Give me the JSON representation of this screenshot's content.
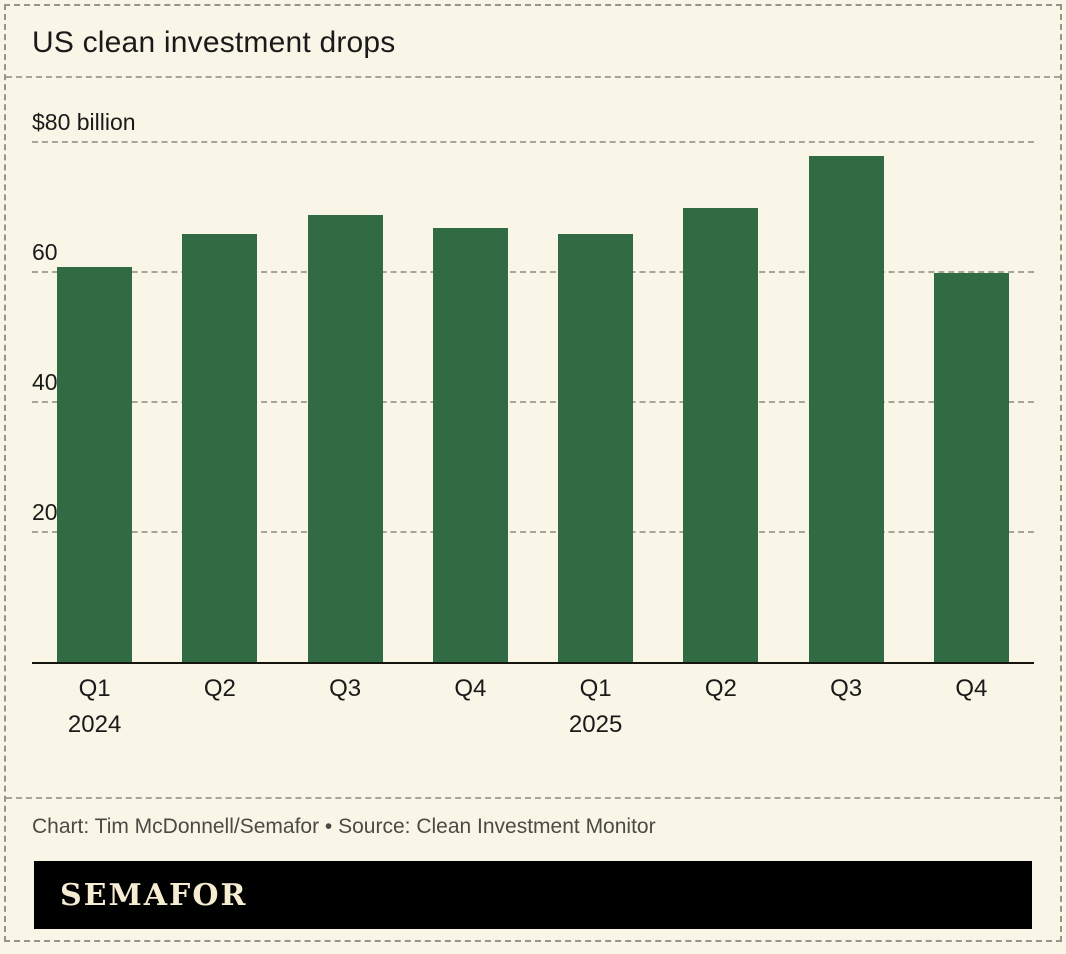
{
  "chart_data": {
    "type": "bar",
    "title": "US clean investment drops",
    "categories": [
      "Q1",
      "Q2",
      "Q3",
      "Q4",
      "Q1",
      "Q2",
      "Q3",
      "Q4"
    ],
    "year_labels": [
      {
        "index": 0,
        "label": "2024"
      },
      {
        "index": 4,
        "label": "2025"
      }
    ],
    "values": [
      61,
      66,
      69,
      67,
      66,
      70,
      78,
      60
    ],
    "ylabel": "$ billion",
    "ylim": [
      0,
      80
    ],
    "yticks": [
      20,
      40,
      60,
      80
    ],
    "ytick_labels": [
      "20",
      "40",
      "60",
      "$80 billion"
    ],
    "grid": true,
    "legend": "none"
  },
  "footer": {
    "credit": "Chart: Tim McDonnell/Semafor • Source: Clean Investment Monitor",
    "brand": "SEMAFOR"
  },
  "colors": {
    "background": "#f9f6e7",
    "bar": "#306b43",
    "text": "#1a1a1a",
    "muted": "#4c4a44",
    "grid": "#a8a496",
    "frame": "#97948a",
    "brand_bg": "#000000",
    "brand_text": "#f6ecd2"
  }
}
